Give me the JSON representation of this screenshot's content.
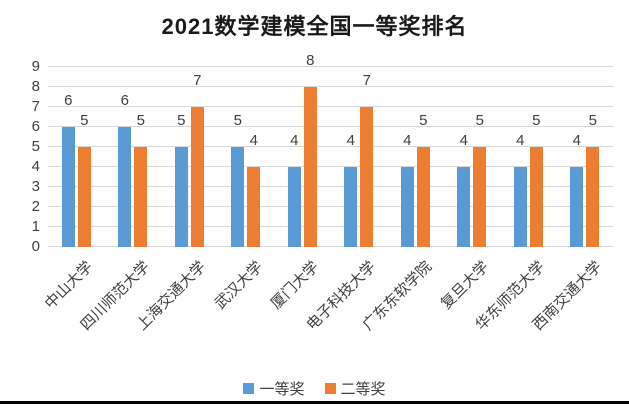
{
  "title": "2021数学建模全国一等奖排名",
  "chart_data": {
    "type": "bar",
    "title": "2021数学建模全国一等奖排名",
    "categories": [
      "中山大学",
      "四川师范大学",
      "上海交通大学",
      "武汉大学",
      "厦门大学",
      "电子科技大学",
      "广东东软学院",
      "复旦大学",
      "华东师范大学",
      "西南交通大学"
    ],
    "series": [
      {
        "name": "一等奖",
        "color": "#5B9BD5",
        "values": [
          6,
          6,
          5,
          5,
          4,
          4,
          4,
          4,
          4,
          4
        ]
      },
      {
        "name": "二等奖",
        "color": "#ED7D31",
        "values": [
          5,
          5,
          7,
          4,
          8,
          7,
          5,
          5,
          5,
          5
        ]
      }
    ],
    "ylim": [
      0,
      9
    ],
    "yticks": [
      0,
      1,
      2,
      3,
      4,
      5,
      6,
      7,
      8,
      9
    ],
    "grid": true,
    "data_labels": true,
    "legend_position": "bottom",
    "xlabel": "",
    "ylabel": ""
  },
  "colors": {
    "first_prize": "#5B9BD5",
    "second_prize": "#ED7D31",
    "gridline": "#D9D9D9",
    "axis_text": "#404040",
    "title_text": "#1A1A1A",
    "bottom_rule": "#000000",
    "background": "#FFFFFF"
  }
}
